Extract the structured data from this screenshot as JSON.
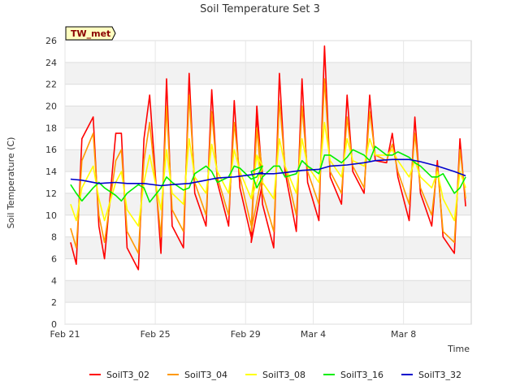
{
  "chart_data": {
    "type": "line",
    "title": "Soil Temperature Set 3",
    "xlabel": "Time",
    "ylabel": "Soil Temperature (C)",
    "site_tag": "TW_met",
    "xlim": [
      "2015-02-21",
      "2015-03-11"
    ],
    "ylim": [
      0,
      26
    ],
    "yticks": [
      0,
      2,
      4,
      6,
      8,
      10,
      12,
      14,
      16,
      18,
      20,
      22,
      24,
      26
    ],
    "xticks": [
      {
        "date": "2015-02-21",
        "label": "Feb 21"
      },
      {
        "date": "2015-02-25",
        "label": "Feb 25"
      },
      {
        "date": "2015-02-29",
        "label": "Feb 29"
      },
      {
        "date": "2015-03-04",
        "label": "Mar 4"
      },
      {
        "date": "2015-03-08",
        "label": "Mar 8"
      }
    ],
    "grid": true,
    "legend_position": "bottom",
    "series": [
      {
        "name": "SoilT3_02",
        "color": "#ff0000",
        "x": [
          "2015-02-21 06:00",
          "2015-02-21 12:00",
          "2015-02-21 18:00",
          "2015-02-22 06:00",
          "2015-02-22 12:00",
          "2015-02-22 18:00",
          "2015-02-23 06:00",
          "2015-02-23 12:00",
          "2015-02-23 18:00",
          "2015-02-24 06:00",
          "2015-02-24 12:00",
          "2015-02-24 18:00",
          "2015-02-25 06:00",
          "2015-02-25 12:00",
          "2015-02-25 18:00",
          "2015-02-26 06:00",
          "2015-02-26 12:00",
          "2015-02-26 18:00",
          "2015-02-27 06:00",
          "2015-02-27 12:00",
          "2015-02-27 18:00",
          "2015-02-28 06:00",
          "2015-02-28 12:00",
          "2015-02-28 18:00",
          "2015-02-29 06:00",
          "2015-02-29 12:00",
          "2015-02-29 18:00",
          "2015-03-01 06:00",
          "2015-03-01 12:00",
          "2015-03-01 18:00",
          "2015-03-02 06:00",
          "2015-03-02 12:00",
          "2015-03-02 18:00",
          "2015-03-03 06:00",
          "2015-03-03 12:00",
          "2015-03-03 18:00",
          "2015-03-04 06:00",
          "2015-03-04 12:00",
          "2015-03-04 18:00",
          "2015-03-05 06:00",
          "2015-03-05 12:00",
          "2015-03-05 18:00",
          "2015-03-06 06:00",
          "2015-03-06 12:00",
          "2015-03-06 18:00",
          "2015-03-07 06:00",
          "2015-03-07 12:00",
          "2015-03-07 18:00",
          "2015-03-08 06:00",
          "2015-03-08 12:00",
          "2015-03-08 18:00",
          "2015-03-09 06:00",
          "2015-03-09 12:00",
          "2015-03-09 18:00",
          "2015-03-10 06:00",
          "2015-03-10 12:00",
          "2015-03-10 18:00"
        ],
        "y": [
          7.5,
          5.5,
          17.0,
          19.0,
          9.0,
          6.0,
          17.5,
          17.5,
          7.0,
          5.0,
          17.0,
          21.0,
          6.5,
          22.5,
          9.0,
          7.0,
          23.0,
          12.0,
          9.0,
          21.5,
          13.0,
          9.0,
          20.5,
          12.5,
          8.0,
          20.0,
          13.0,
          7.5,
          19.5,
          11.0,
          7.0,
          23.0,
          14.0,
          8.5,
          22.5,
          13.0,
          9.5,
          25.5,
          13.5,
          11.0,
          21.0,
          14.0,
          12.0,
          21.0,
          15.0,
          14.8,
          17.5,
          13.5,
          9.5,
          19.0,
          12.0,
          9.0,
          15.0,
          8.0,
          6.5,
          17.0,
          10.8
        ]
      },
      {
        "name": "SoilT3_04",
        "color": "#ff9900",
        "x": [
          "2015-02-21 06:00",
          "2015-02-21 12:00",
          "2015-02-21 18:00",
          "2015-02-22 06:00",
          "2015-02-22 12:00",
          "2015-02-22 18:00",
          "2015-02-23 06:00",
          "2015-02-23 12:00",
          "2015-02-23 18:00",
          "2015-02-24 06:00",
          "2015-02-24 12:00",
          "2015-02-24 18:00",
          "2015-02-25 06:00",
          "2015-02-25 12:00",
          "2015-02-25 18:00",
          "2015-02-26 06:00",
          "2015-02-26 12:00",
          "2015-02-26 18:00",
          "2015-02-27 06:00",
          "2015-02-27 12:00",
          "2015-02-27 18:00",
          "2015-02-28 06:00",
          "2015-02-28 12:00",
          "2015-02-28 18:00",
          "2015-02-29 06:00",
          "2015-02-29 12:00",
          "2015-02-29 18:00",
          "2015-03-01 06:00",
          "2015-03-01 12:00",
          "2015-03-01 18:00",
          "2015-03-02 06:00",
          "2015-03-02 12:00",
          "2015-03-02 18:00",
          "2015-03-03 06:00",
          "2015-03-03 12:00",
          "2015-03-03 18:00",
          "2015-03-04 06:00",
          "2015-03-04 12:00",
          "2015-03-04 18:00",
          "2015-03-05 06:00",
          "2015-03-05 12:00",
          "2015-03-05 18:00",
          "2015-03-06 06:00",
          "2015-03-06 12:00",
          "2015-03-06 18:00",
          "2015-03-07 06:00",
          "2015-03-07 12:00",
          "2015-03-07 18:00",
          "2015-03-08 06:00",
          "2015-03-08 12:00",
          "2015-03-08 18:00",
          "2015-03-09 06:00",
          "2015-03-09 12:00",
          "2015-03-09 18:00",
          "2015-03-10 06:00",
          "2015-03-10 12:00",
          "2015-03-10 18:00"
        ],
        "y": [
          8.8,
          7.0,
          15.0,
          17.5,
          10.0,
          7.5,
          15.0,
          16.0,
          8.5,
          6.5,
          15.0,
          18.5,
          8.0,
          20.0,
          10.5,
          8.5,
          21.0,
          13.0,
          10.0,
          19.5,
          13.5,
          10.0,
          18.5,
          13.5,
          9.0,
          18.0,
          14.0,
          8.5,
          18.0,
          12.0,
          8.5,
          20.5,
          14.5,
          10.0,
          20.0,
          14.0,
          11.0,
          22.5,
          14.0,
          12.0,
          19.0,
          14.5,
          12.5,
          19.5,
          15.5,
          15.0,
          16.5,
          14.0,
          11.0,
          17.5,
          12.5,
          10.0,
          14.5,
          8.5,
          7.5,
          16.0,
          11.5
        ]
      },
      {
        "name": "SoilT3_08",
        "color": "#ffff00",
        "x": [
          "2015-02-21 06:00",
          "2015-02-21 12:00",
          "2015-02-21 18:00",
          "2015-02-22 06:00",
          "2015-02-22 12:00",
          "2015-02-22 18:00",
          "2015-02-23 06:00",
          "2015-02-23 12:00",
          "2015-02-23 18:00",
          "2015-02-24 06:00",
          "2015-02-24 12:00",
          "2015-02-24 18:00",
          "2015-02-25 06:00",
          "2015-02-25 12:00",
          "2015-02-25 18:00",
          "2015-02-26 06:00",
          "2015-02-26 12:00",
          "2015-02-26 18:00",
          "2015-02-27 06:00",
          "2015-02-27 12:00",
          "2015-02-27 18:00",
          "2015-02-28 06:00",
          "2015-02-28 12:00",
          "2015-02-28 18:00",
          "2015-02-29 06:00",
          "2015-02-29 12:00",
          "2015-02-29 18:00",
          "2015-03-01 06:00",
          "2015-03-01 12:00",
          "2015-03-01 18:00",
          "2015-03-02 06:00",
          "2015-03-02 12:00",
          "2015-03-02 18:00",
          "2015-03-03 06:00",
          "2015-03-03 12:00",
          "2015-03-03 18:00",
          "2015-03-04 06:00",
          "2015-03-04 12:00",
          "2015-03-04 18:00",
          "2015-03-05 06:00",
          "2015-03-05 12:00",
          "2015-03-05 18:00",
          "2015-03-06 06:00",
          "2015-03-06 12:00",
          "2015-03-06 18:00",
          "2015-03-07 06:00",
          "2015-03-07 12:00",
          "2015-03-07 18:00",
          "2015-03-08 06:00",
          "2015-03-08 12:00",
          "2015-03-08 18:00",
          "2015-03-09 06:00",
          "2015-03-09 12:00",
          "2015-03-09 18:00",
          "2015-03-10 06:00",
          "2015-03-10 12:00",
          "2015-03-10 18:00"
        ],
        "y": [
          11.0,
          9.5,
          12.5,
          14.5,
          11.5,
          9.5,
          13.0,
          14.0,
          10.5,
          9.0,
          13.0,
          15.5,
          10.5,
          16.0,
          12.0,
          11.0,
          17.0,
          13.5,
          12.0,
          16.5,
          14.0,
          12.0,
          16.0,
          14.0,
          11.5,
          15.5,
          14.5,
          11.5,
          15.5,
          13.0,
          11.5,
          17.0,
          14.5,
          12.0,
          17.0,
          14.5,
          13.0,
          18.5,
          15.0,
          13.5,
          17.0,
          15.0,
          14.5,
          17.0,
          15.5,
          15.5,
          16.0,
          15.0,
          13.5,
          15.0,
          13.5,
          12.5,
          14.0,
          11.5,
          9.5,
          14.0,
          12.5
        ]
      },
      {
        "name": "SoilT3_16",
        "color": "#00ee00",
        "x": [
          "2015-02-21 06:00",
          "2015-02-21 12:00",
          "2015-02-21 18:00",
          "2015-02-22 06:00",
          "2015-02-22 12:00",
          "2015-02-22 18:00",
          "2015-02-23 06:00",
          "2015-02-23 12:00",
          "2015-02-23 18:00",
          "2015-02-24 06:00",
          "2015-02-24 12:00",
          "2015-02-24 18:00",
          "2015-02-25 06:00",
          "2015-02-25 12:00",
          "2015-02-25 18:00",
          "2015-02-26 06:00",
          "2015-02-26 12:00",
          "2015-02-26 18:00",
          "2015-02-27 06:00",
          "2015-02-27 12:00",
          "2015-02-27 18:00",
          "2015-02-28 06:00",
          "2015-02-28 12:00",
          "2015-02-28 18:00",
          "2015-02-29 06:00",
          "2015-02-29 12:00",
          "2015-02-29 18:00",
          "2015-03-01 06:00",
          "2015-03-01 12:00",
          "2015-03-01 18:00",
          "2015-03-02 06:00",
          "2015-03-02 12:00",
          "2015-03-02 18:00",
          "2015-03-03 06:00",
          "2015-03-03 12:00",
          "2015-03-03 18:00",
          "2015-03-04 06:00",
          "2015-03-04 12:00",
          "2015-03-04 18:00",
          "2015-03-05 06:00",
          "2015-03-05 12:00",
          "2015-03-05 18:00",
          "2015-03-06 06:00",
          "2015-03-06 12:00",
          "2015-03-06 18:00",
          "2015-03-07 06:00",
          "2015-03-07 12:00",
          "2015-03-07 18:00",
          "2015-03-08 06:00",
          "2015-03-08 12:00",
          "2015-03-08 18:00",
          "2015-03-09 06:00",
          "2015-03-09 12:00",
          "2015-03-09 18:00",
          "2015-03-10 06:00",
          "2015-03-10 12:00",
          "2015-03-10 18:00"
        ],
        "y": [
          12.8,
          12.0,
          11.3,
          12.5,
          13.0,
          12.5,
          11.8,
          11.3,
          12.0,
          12.8,
          12.5,
          11.2,
          12.5,
          13.5,
          13.0,
          12.3,
          12.5,
          13.8,
          14.5,
          14.0,
          13.0,
          13.5,
          14.5,
          14.3,
          13.3,
          13.5,
          14.5,
          14.0,
          12.5,
          13.5,
          14.5,
          14.5,
          13.5,
          13.8,
          15.0,
          14.5,
          13.8,
          15.5,
          15.5,
          14.8,
          15.3,
          16.0,
          15.5,
          15.0,
          16.3,
          15.5,
          15.5,
          15.8,
          15.3,
          14.8,
          14.5,
          13.5,
          13.5,
          13.8,
          12.0,
          12.5,
          13.5
        ]
      },
      {
        "name": "SoilT3_32",
        "color": "#0000cc",
        "x": [
          "2015-02-21 06:00",
          "2015-02-21 18:00",
          "2015-02-22 12:00",
          "2015-02-23 06:00",
          "2015-02-23 18:00",
          "2015-02-24 12:00",
          "2015-02-25 06:00",
          "2015-02-25 18:00",
          "2015-02-26 12:00",
          "2015-02-27 06:00",
          "2015-02-27 18:00",
          "2015-02-28 12:00",
          "2015-02-29 06:00",
          "2015-02-29 18:00",
          "2015-03-01 12:00",
          "2015-03-02 06:00",
          "2015-03-02 18:00",
          "2015-03-03 12:00",
          "2015-03-04 06:00",
          "2015-03-04 18:00",
          "2015-03-05 12:00",
          "2015-03-06 06:00",
          "2015-03-06 18:00",
          "2015-03-07 12:00",
          "2015-03-08 06:00",
          "2015-03-08 18:00",
          "2015-03-09 12:00",
          "2015-03-10 06:00",
          "2015-03-10 18:00"
        ],
        "y": [
          13.3,
          13.2,
          12.9,
          13.0,
          12.9,
          12.9,
          12.7,
          12.8,
          12.9,
          13.2,
          13.4,
          13.5,
          13.7,
          13.9,
          13.8,
          13.8,
          13.9,
          14.1,
          14.2,
          14.5,
          14.6,
          14.8,
          15.0,
          15.1,
          15.1,
          14.9,
          14.5,
          14.0,
          13.6
        ]
      }
    ]
  }
}
